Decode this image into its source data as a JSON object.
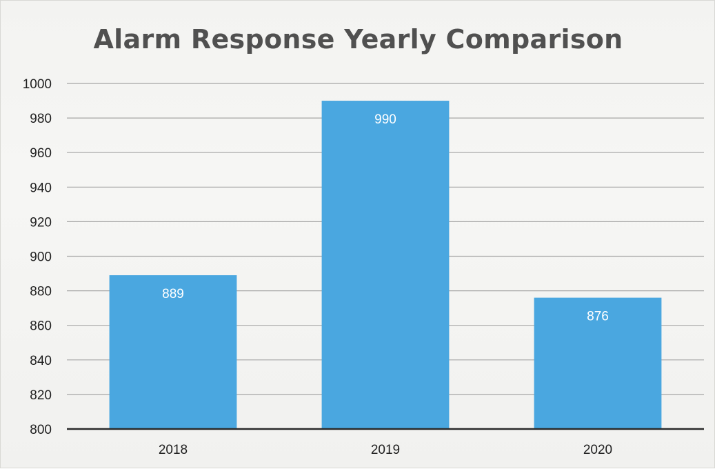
{
  "chart_data": {
    "type": "bar",
    "title": "Alarm Response Yearly Comparison",
    "xlabel": "",
    "ylabel": "",
    "categories": [
      "2018",
      "2019",
      "2020"
    ],
    "values": [
      889,
      990,
      876
    ],
    "data_labels": [
      "889",
      "990",
      "876"
    ],
    "ylim": [
      800,
      1000
    ],
    "yticks": [
      "800",
      "820",
      "840",
      "860",
      "880",
      "900",
      "920",
      "940",
      "960",
      "980",
      "1000"
    ],
    "grid": true,
    "legend": "none",
    "colors": {
      "bar": "#4aa7e0",
      "grid": "#8c8c8c",
      "axis": "#2a2a2a"
    }
  }
}
